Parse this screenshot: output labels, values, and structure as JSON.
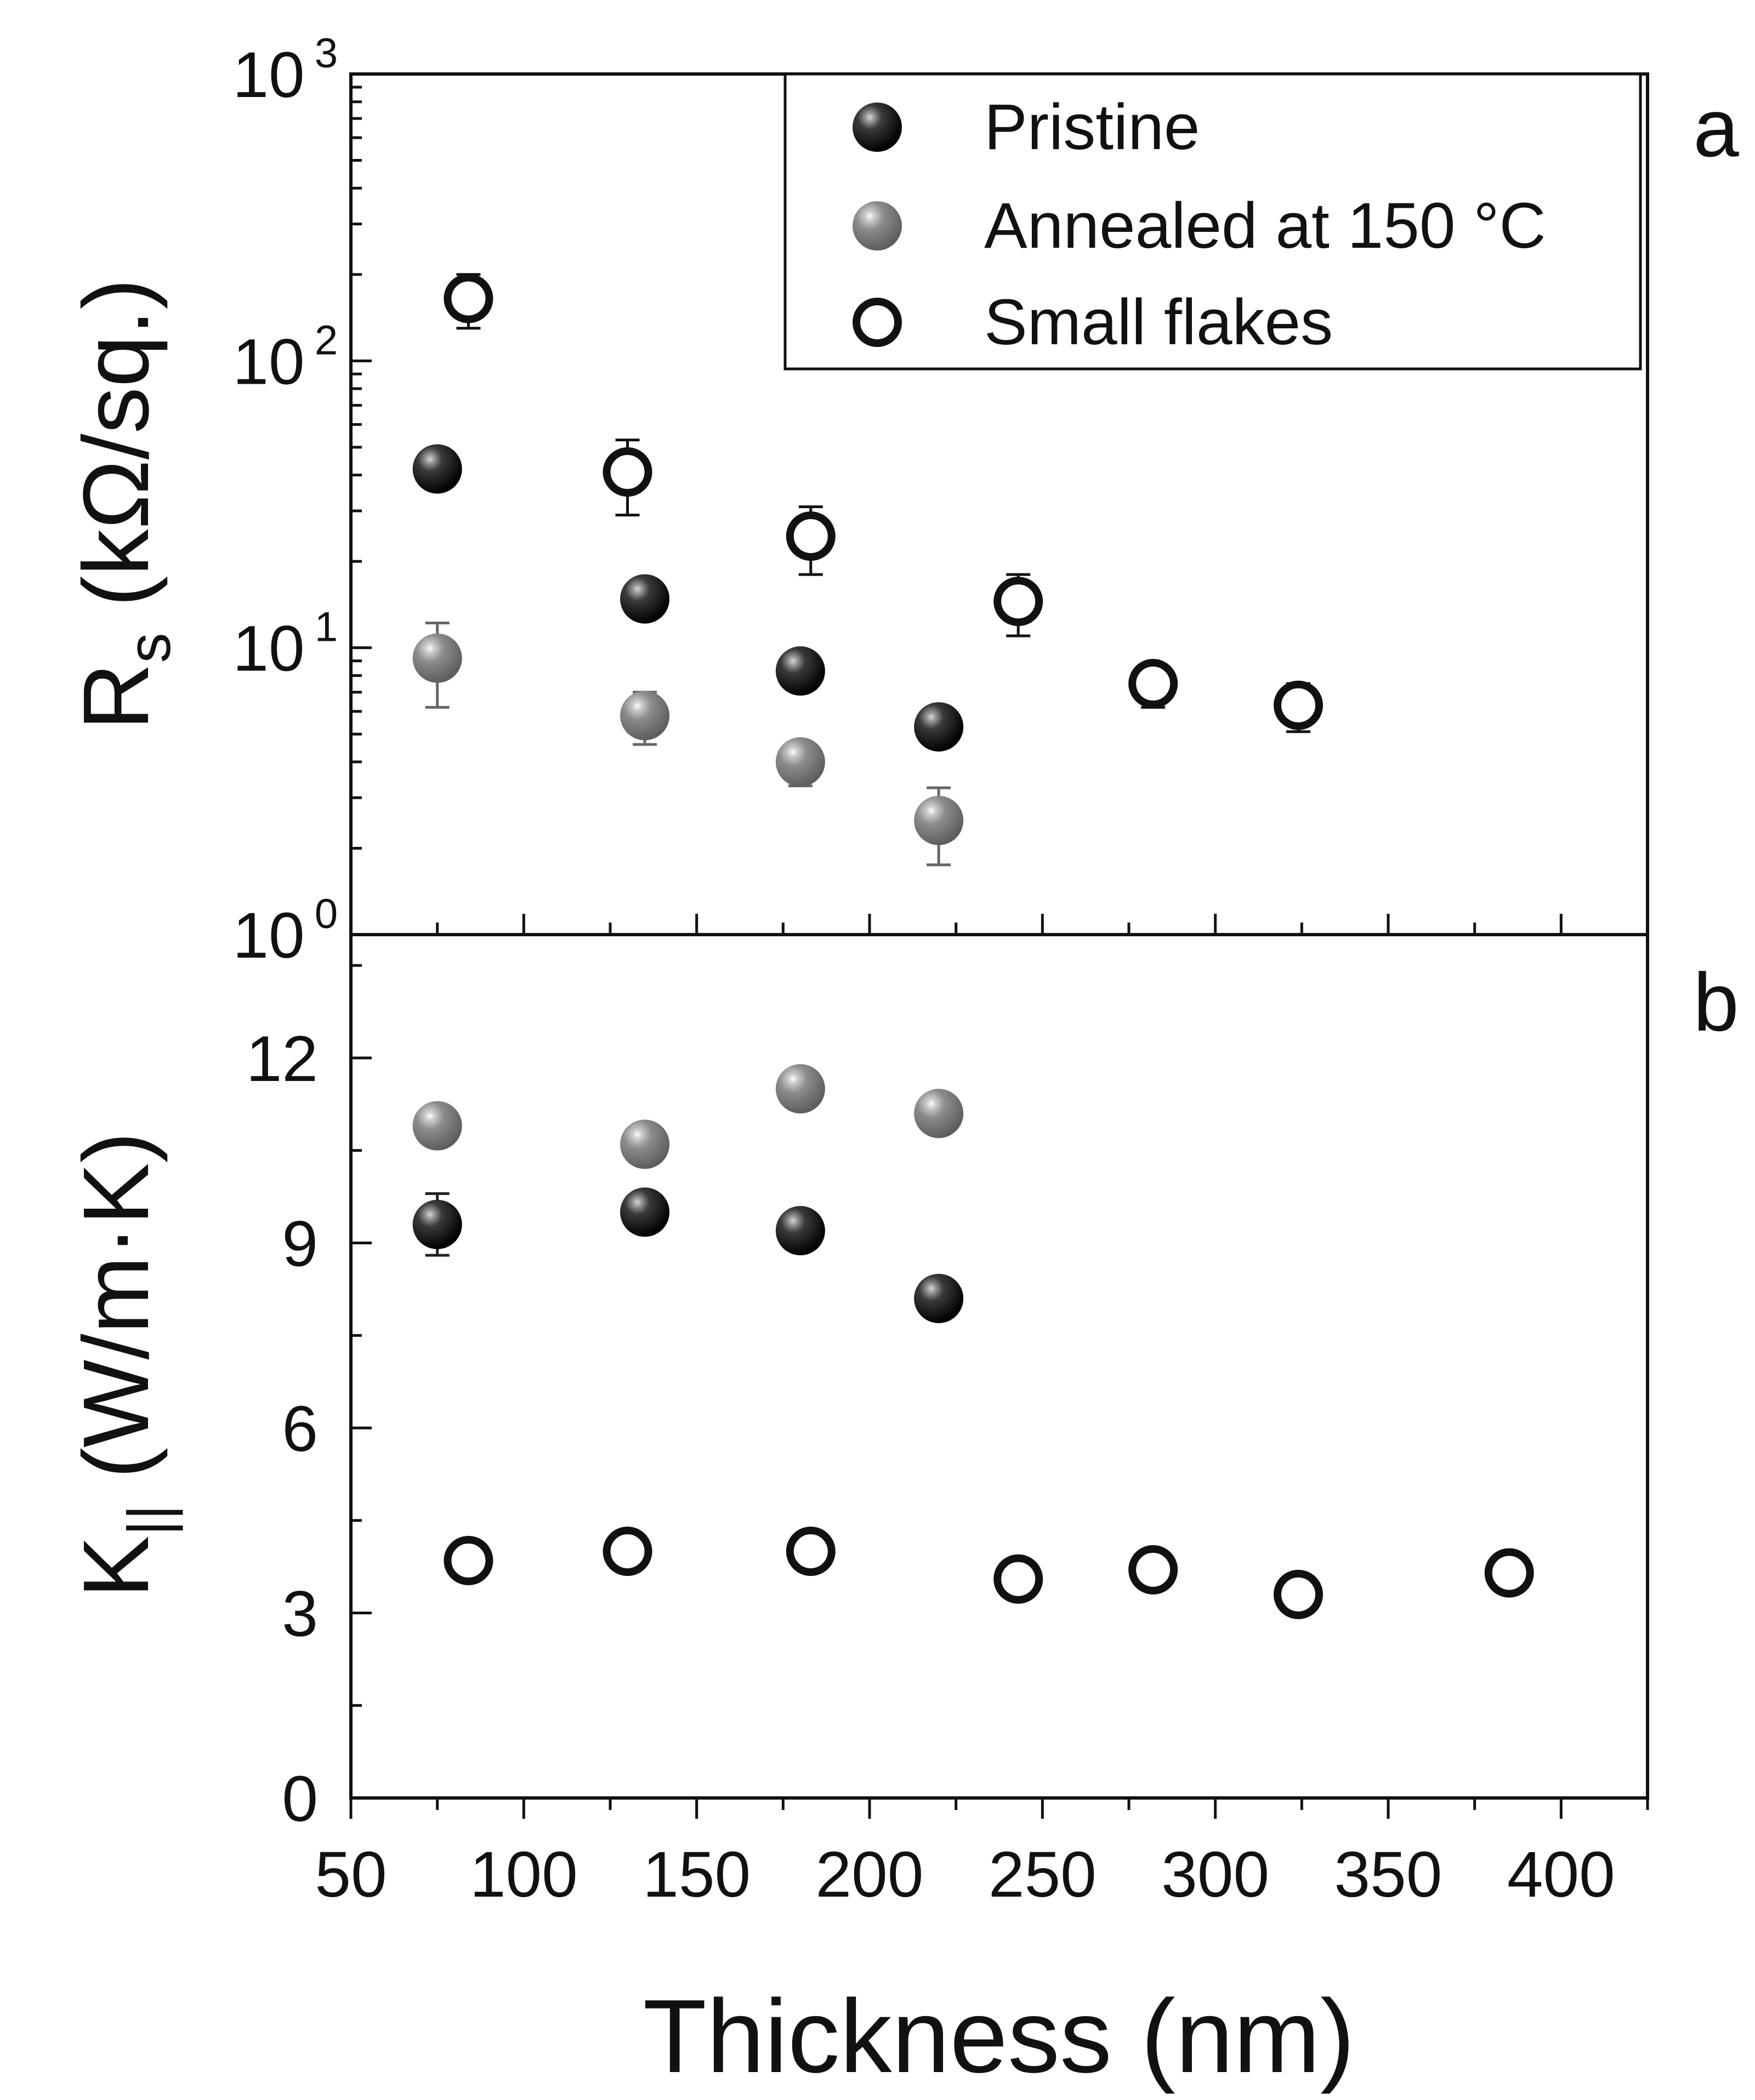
{
  "chart_data": [
    {
      "panel": "a",
      "type": "scatter",
      "yscale": "log",
      "ylim": [
        1,
        1000
      ],
      "xlim": [
        50,
        425
      ],
      "ylabel_main": "R",
      "ylabel_sub": "s",
      "ylabel_rest": " (kΩ/sq.)",
      "yticks": [
        {
          "base": "10",
          "exp": "0",
          "value": 1
        },
        {
          "base": "10",
          "exp": "1",
          "value": 10
        },
        {
          "base": "10",
          "exp": "2",
          "value": 100
        },
        {
          "base": "10",
          "exp": "3",
          "value": 1000
        }
      ],
      "series": [
        {
          "name": "Pristine",
          "x": [
            75,
            135,
            180,
            220
          ],
          "y": [
            42,
            14.8,
            8.3,
            5.3
          ],
          "err": [
            5,
            1,
            0.8,
            0.4
          ]
        },
        {
          "name": "Annealed at 150 °C",
          "x": [
            75,
            135,
            180,
            220
          ],
          "y": [
            9.2,
            5.8,
            4.0,
            2.5
          ],
          "err": [
            3,
            1.2,
            0.7,
            0.75
          ]
        },
        {
          "name": "Small flakes",
          "x": [
            84,
            130,
            183,
            243,
            282,
            324
          ],
          "y": [
            165,
            41,
            24.5,
            14.5,
            7.5,
            6.3
          ],
          "err": [
            35,
            12,
            6.5,
            3.5,
            1.3,
            1.2
          ]
        }
      ],
      "legend": {
        "position": "top-right",
        "entries": [
          "Pristine",
          "Annealed at 150 °C",
          "Small flakes"
        ]
      }
    },
    {
      "panel": "b",
      "type": "scatter",
      "yscale": "linear",
      "ylim": [
        0,
        14
      ],
      "xlim": [
        50,
        425
      ],
      "ylabel_main": "K",
      "ylabel_sub": "||",
      "ylabel_rest": " (W/m·K)",
      "yticks": [
        "0",
        "3",
        "6",
        "9",
        "12"
      ],
      "xticks": [
        "50",
        "100",
        "150",
        "200",
        "250",
        "300",
        "350",
        "400"
      ],
      "xlabel": "Thickness (nm)",
      "series": [
        {
          "name": "Pristine",
          "x": [
            75,
            135,
            180,
            220
          ],
          "y": [
            9.3,
            9.5,
            9.2,
            8.1
          ],
          "err": [
            0.5,
            0.15,
            0.15,
            0.1
          ]
        },
        {
          "name": "Annealed at 150 °C",
          "x": [
            75,
            135,
            180,
            220
          ],
          "y": [
            10.9,
            10.6,
            11.5,
            11.1
          ],
          "err": [
            0.15,
            0.15,
            0.15,
            0.1
          ]
        },
        {
          "name": "Small flakes",
          "x": [
            84,
            130,
            183,
            243,
            282,
            324,
            385
          ],
          "y": [
            3.85,
            4.0,
            4.0,
            3.55,
            3.7,
            3.3,
            3.65
          ],
          "err": [
            0.1,
            0.1,
            0.15,
            0.2,
            0.1,
            0.1,
            0.1
          ]
        }
      ]
    }
  ],
  "legend_labels": [
    "Pristine",
    "Annealed at 150 °C",
    "Small flakes"
  ],
  "panel_labels": {
    "a": "a",
    "b": "b"
  }
}
